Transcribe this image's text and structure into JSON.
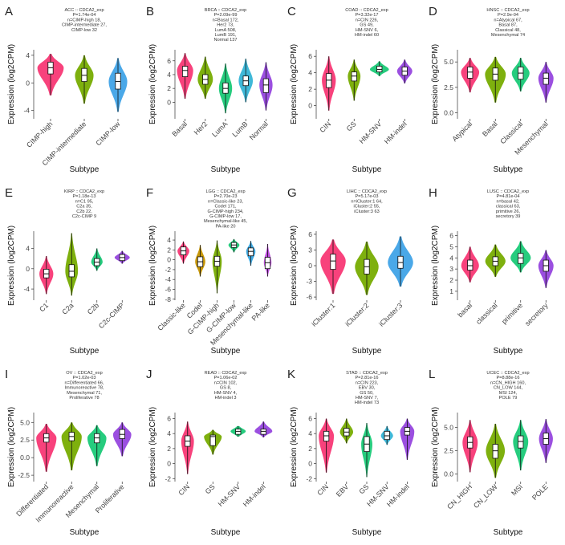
{
  "figure": {
    "xlabel": "Subtype",
    "ylabel": "Expression (log2CPM)"
  },
  "chart_data": [
    {
      "type": "violin",
      "letter": "A",
      "title_lines": [
        "ACC :: CDCA2_exp",
        "P=1.74e-04",
        "n=CIMP-high 18,",
        "CIMP-intermediate 27,",
        "CIMP-low 32"
      ],
      "xlabel": "Subtype",
      "ylabel": "Expression (log2CPM)",
      "ylim": [
        -5.2,
        4.8
      ],
      "yticks": [
        -4,
        0,
        4
      ],
      "categories": [
        "CIMP-high",
        "CIMP-intermediate",
        "CIMP-low"
      ],
      "colors": [
        "#F8427C",
        "#7EB00E",
        "#4AA8E8"
      ],
      "medians": [
        2.2,
        1.1,
        0.2
      ],
      "q1": [
        1.3,
        0.2,
        -0.9
      ],
      "q3": [
        3.0,
        2.1,
        1.4
      ],
      "mins": [
        -1.8,
        -3.0,
        -4.2
      ],
      "maxs": [
        4.2,
        4.0,
        3.6
      ],
      "widths": [
        0.78,
        0.55,
        0.55
      ]
    },
    {
      "type": "violin",
      "letter": "B",
      "title_lines": [
        "BRCA :: CDCA2_exp",
        "P=2.09e-99",
        "n=Basal 172,",
        "Her2 73,",
        "LumA 508,",
        "LumB 191,",
        "Normal 137"
      ],
      "xlabel": "Subtype",
      "ylabel": "Expression (log2CPM)",
      "ylim": [
        -2.4,
        7.6
      ],
      "yticks": [
        0,
        2,
        4,
        6
      ],
      "categories": [
        "Basal",
        "Her2",
        "LumA",
        "LumB",
        "Normal"
      ],
      "colors": [
        "#F8427C",
        "#7EB00E",
        "#26CC7E",
        "#3FB8D8",
        "#9B4FE0"
      ],
      "medians": [
        4.6,
        3.3,
        2.0,
        3.1,
        2.5
      ],
      "q1": [
        3.7,
        2.6,
        1.3,
        2.4,
        1.4
      ],
      "q3": [
        5.2,
        4.0,
        2.8,
        3.8,
        3.4
      ],
      "mins": [
        0.5,
        0.5,
        -1.6,
        0.0,
        -1.2
      ],
      "maxs": [
        7.1,
        6.6,
        5.6,
        6.3,
        5.8
      ],
      "widths": [
        0.8,
        0.75,
        0.65,
        0.7,
        0.65
      ]
    },
    {
      "type": "violin",
      "letter": "C",
      "title_lines": [
        "COAD :: CDCA2_exp",
        "P=3.32e-17",
        "n=CIN 226,",
        "GS 49,",
        "HM-SNV 6,",
        "HM-indel 60"
      ],
      "xlabel": "Subtype",
      "ylabel": "Expression (log2CPM)",
      "ylim": [
        -1.6,
        6.8
      ],
      "yticks": [
        0,
        2,
        4,
        6
      ],
      "categories": [
        "CIN",
        "GS",
        "HM-SNV",
        "HM-indel"
      ],
      "colors": [
        "#F8427C",
        "#7EB00E",
        "#26CC7E",
        "#9B4FE0"
      ],
      "medians": [
        3.1,
        3.6,
        4.4,
        4.2
      ],
      "q1": [
        2.2,
        3.0,
        4.1,
        3.7
      ],
      "q3": [
        3.9,
        4.1,
        4.8,
        4.7
      ],
      "mins": [
        -0.6,
        0.6,
        3.6,
        2.7
      ],
      "maxs": [
        6.0,
        5.6,
        5.4,
        5.6
      ],
      "widths": [
        0.55,
        0.5,
        0.75,
        0.6
      ]
    },
    {
      "type": "violin",
      "letter": "D",
      "title_lines": [
        "HNSC :: CDCA2_exp",
        "P=2.9e-04",
        "n=Atypical 67,",
        "Basal 87,",
        "Classical 48,",
        "Mesenchymal 74"
      ],
      "xlabel": "Subtype",
      "ylabel": "Expression (log2CPM)",
      "ylim": [
        -0.6,
        6.2
      ],
      "yticks": [
        0.0,
        2.5,
        5.0
      ],
      "categories": [
        "Atypical",
        "Basal",
        "Classical",
        "Mesenchymal"
      ],
      "colors": [
        "#F8427C",
        "#7EB00E",
        "#26CC7E",
        "#9B4FE0"
      ],
      "medians": [
        4.0,
        3.8,
        3.9,
        3.4
      ],
      "q1": [
        3.4,
        3.2,
        3.3,
        2.8
      ],
      "q3": [
        4.5,
        4.4,
        4.5,
        3.9
      ],
      "mins": [
        2.0,
        1.0,
        2.1,
        1.0
      ],
      "maxs": [
        5.4,
        5.5,
        5.4,
        5.0
      ],
      "widths": [
        0.72,
        0.82,
        0.7,
        0.6
      ]
    },
    {
      "type": "violin",
      "letter": "E",
      "title_lines": [
        "KIRP :: CDCA2_exp",
        "P=1.18e-13",
        "n=C1 95,",
        "C2a 35,",
        "C2b 22,",
        "C2c-CIMP 9"
      ],
      "xlabel": "Subtype",
      "ylabel": "Expression (log2CPM)",
      "ylim": [
        -6.2,
        7.4
      ],
      "yticks": [
        -4,
        0,
        4
      ],
      "categories": [
        "C1",
        "C2a",
        "C2b",
        "C2c-CIMP"
      ],
      "colors": [
        "#F8427C",
        "#7EB00E",
        "#26CC7E",
        "#9B4FE0"
      ],
      "medians": [
        -1.0,
        -0.5,
        1.3,
        2.2
      ],
      "q1": [
        -1.8,
        -1.6,
        0.6,
        1.6
      ],
      "q3": [
        -0.1,
        0.8,
        2.0,
        2.8
      ],
      "mins": [
        -5.0,
        -5.3,
        -0.4,
        1.0
      ],
      "maxs": [
        2.5,
        7.0,
        4.0,
        3.5
      ],
      "widths": [
        0.55,
        0.5,
        0.45,
        0.6
      ]
    },
    {
      "type": "violin",
      "letter": "F",
      "title_lines": [
        "LGG :: CDCA2_exp",
        "P=2.70e-23",
        "n=Classic-like 23,",
        "Codel 171,",
        "G-CIMP-high 234,",
        "G-CIMP-low 17,",
        "Mesenchymal-like 45,",
        "PA-like 20"
      ],
      "xlabel": "Subtype",
      "ylabel": "Expression (log2CPM)",
      "ylim": [
        -8.2,
        5.8
      ],
      "yticks": [
        -8,
        -6,
        -4,
        -2,
        0,
        2,
        4
      ],
      "categories": [
        "Classic-like",
        "Codel",
        "G-CIMP-high",
        "G-CIMP-low",
        "Mesenchymal-like",
        "PA-like"
      ],
      "colors": [
        "#F8427C",
        "#C8980A",
        "#7EB00E",
        "#26CC7E",
        "#3FA8E0",
        "#C04FE0"
      ],
      "medians": [
        1.8,
        -0.4,
        -0.3,
        3.0,
        1.7,
        -0.6
      ],
      "q1": [
        1.0,
        -1.4,
        -1.3,
        2.5,
        0.8,
        -1.8
      ],
      "q3": [
        2.6,
        0.6,
        0.7,
        3.5,
        2.4,
        0.5
      ],
      "mins": [
        -0.8,
        -3.4,
        -6.8,
        1.5,
        -1.2,
        -3.4
      ],
      "maxs": [
        3.7,
        3.0,
        3.9,
        4.2,
        3.8,
        3.2
      ],
      "widths": [
        0.7,
        0.6,
        0.55,
        0.65,
        0.55,
        0.45
      ]
    },
    {
      "type": "violin",
      "letter": "G",
      "title_lines": [
        "LIHC :: CDCA2_exp",
        "P=5.17e-03",
        "n=iCluster:1 64,",
        "iCluster:2 55,",
        "iCluster:3 63"
      ],
      "xlabel": "Subtype",
      "ylabel": "Expression (log2CPM)",
      "ylim": [
        -6.6,
        6.6
      ],
      "yticks": [
        -6,
        -3,
        0,
        3,
        6
      ],
      "categories": [
        "iCluster:1",
        "iCluster:2",
        "iCluster:3"
      ],
      "colors": [
        "#F8427C",
        "#7EB00E",
        "#4AA8E8"
      ],
      "medians": [
        0.9,
        -0.2,
        0.6
      ],
      "q1": [
        -0.7,
        -1.6,
        -0.5
      ],
      "q3": [
        2.2,
        1.2,
        1.8
      ],
      "mins": [
        -5.4,
        -5.6,
        -4.0
      ],
      "maxs": [
        5.0,
        4.6,
        5.6
      ],
      "widths": [
        0.75,
        0.7,
        0.75
      ]
    },
    {
      "type": "violin",
      "letter": "H",
      "title_lines": [
        "LUSC :: CDCA2_exp",
        "P=4.81e-04",
        "n=basal 42,",
        "classical 63,",
        "primitive 26,",
        "secretory 39"
      ],
      "xlabel": "Subtype",
      "ylabel": "Expression (log2CPM)",
      "ylim": [
        0.2,
        6.4
      ],
      "yticks": [
        1,
        2,
        3,
        4,
        5,
        6
      ],
      "categories": [
        "basal",
        "classical",
        "primitive",
        "secretory"
      ],
      "colors": [
        "#F8427C",
        "#7EB00E",
        "#26CC7E",
        "#9B4FE0"
      ],
      "medians": [
        3.3,
        3.7,
        4.0,
        3.3
      ],
      "q1": [
        2.9,
        3.3,
        3.5,
        2.8
      ],
      "q3": [
        3.8,
        4.1,
        4.4,
        3.8
      ],
      "mins": [
        1.8,
        2.3,
        2.7,
        1.3
      ],
      "maxs": [
        5.0,
        5.2,
        5.5,
        4.7
      ],
      "widths": [
        0.7,
        0.8,
        0.8,
        0.6
      ]
    },
    {
      "type": "violin",
      "letter": "I",
      "title_lines": [
        "OV :: CDCA2_exp",
        "P=1.02e-03",
        "n=Differentiated 66,",
        "Immunoreactive 78,",
        "Mesenchymal 71,",
        "Proliferative 78"
      ],
      "xlabel": "Subtype",
      "ylabel": "Expression (log2CPM)",
      "ylim": [
        -3.4,
        6.4
      ],
      "yticks": [
        -2.5,
        0.0,
        2.5,
        5.0
      ],
      "categories": [
        "Differentiated",
        "Immunoreactive",
        "Mesenchymal",
        "Proliferative"
      ],
      "colors": [
        "#F8427C",
        "#7EB00E",
        "#26CC7E",
        "#9B4FE0"
      ],
      "medians": [
        2.8,
        3.0,
        2.8,
        3.3
      ],
      "q1": [
        2.2,
        2.4,
        2.1,
        2.7
      ],
      "q3": [
        3.4,
        3.6,
        3.4,
        4.0
      ],
      "mins": [
        -2.0,
        -1.8,
        -1.2,
        0.2
      ],
      "maxs": [
        4.8,
        5.0,
        4.6,
        5.0
      ],
      "widths": [
        0.8,
        0.8,
        0.75,
        0.72
      ]
    },
    {
      "type": "violin",
      "letter": "J",
      "title_lines": [
        "READ :: CDCA2_exp",
        "P=1.06e-02",
        "n=CIN 102,",
        "GS 8,",
        "HM-SNV 4,",
        "HM-indel 3"
      ],
      "xlabel": "Subtype",
      "ylabel": "Expression (log2CPM)",
      "ylim": [
        -2.4,
        6.8
      ],
      "yticks": [
        -2,
        0,
        2,
        4,
        6
      ],
      "categories": [
        "CIN",
        "GS",
        "HM-SNV",
        "HM-indel"
      ],
      "colors": [
        "#F8427C",
        "#7EB00E",
        "#26CC7E",
        "#9B4FE0"
      ],
      "medians": [
        3.0,
        3.6,
        4.3,
        4.3
      ],
      "q1": [
        2.3,
        2.4,
        3.9,
        3.9
      ],
      "q3": [
        3.7,
        3.8,
        4.6,
        4.6
      ],
      "mins": [
        -1.4,
        1.2,
        3.6,
        3.5
      ],
      "maxs": [
        5.6,
        4.5,
        5.0,
        5.6
      ],
      "widths": [
        0.5,
        0.7,
        0.6,
        0.7
      ]
    },
    {
      "type": "violin",
      "letter": "K",
      "title_lines": [
        "STAD :: CDCA2_exp",
        "P=2.81e-16",
        "n=CIN 223,",
        "EBV 30,",
        "GS 50,",
        "HM-SNV 7,",
        "HM-indel 73"
      ],
      "xlabel": "Subtype",
      "ylabel": "Expression (log2CPM)",
      "ylim": [
        -2.4,
        6.8
      ],
      "yticks": [
        -2,
        0,
        2,
        4,
        6
      ],
      "categories": [
        "CIN",
        "EBV",
        "GS",
        "HM-SNV",
        "HM-indel"
      ],
      "colors": [
        "#F8427C",
        "#7EB00E",
        "#26CC7E",
        "#3FB8D8",
        "#9B4FE0"
      ],
      "medians": [
        3.7,
        4.2,
        2.6,
        3.7,
        4.3
      ],
      "q1": [
        3.0,
        3.7,
        1.6,
        3.2,
        3.8
      ],
      "q3": [
        4.3,
        4.7,
        3.6,
        4.3,
        4.8
      ],
      "mins": [
        -1.2,
        2.7,
        -1.8,
        2.5,
        0.5
      ],
      "maxs": [
        6.0,
        6.0,
        5.4,
        5.0,
        6.0
      ],
      "widths": [
        0.75,
        0.65,
        0.55,
        0.6,
        0.7
      ]
    },
    {
      "type": "violin",
      "letter": "L",
      "title_lines": [
        "UCEC :: CDCA2_exp",
        "P=8.88e-16",
        "n=CN_HIGH 160,",
        "CN_LOW 144,",
        "MSI 124,",
        "POLE 79"
      ],
      "xlabel": "Subtype",
      "ylabel": "Expression (log2CPM)",
      "ylim": [
        -0.8,
        6.6
      ],
      "yticks": [
        0.0,
        2.5,
        5.0
      ],
      "categories": [
        "CN_HIGH",
        "CN_LOW",
        "MSI",
        "POLE"
      ],
      "colors": [
        "#F8427C",
        "#7EB00E",
        "#26CC7E",
        "#9B4FE0"
      ],
      "medians": [
        3.4,
        2.5,
        3.5,
        3.8
      ],
      "q1": [
        2.8,
        1.7,
        2.8,
        3.2
      ],
      "q3": [
        4.0,
        3.2,
        4.1,
        4.4
      ],
      "mins": [
        0.2,
        -0.4,
        0.4,
        1.2
      ],
      "maxs": [
        5.8,
        5.4,
        5.8,
        5.9
      ],
      "widths": [
        0.6,
        0.75,
        0.6,
        0.55
      ]
    }
  ]
}
